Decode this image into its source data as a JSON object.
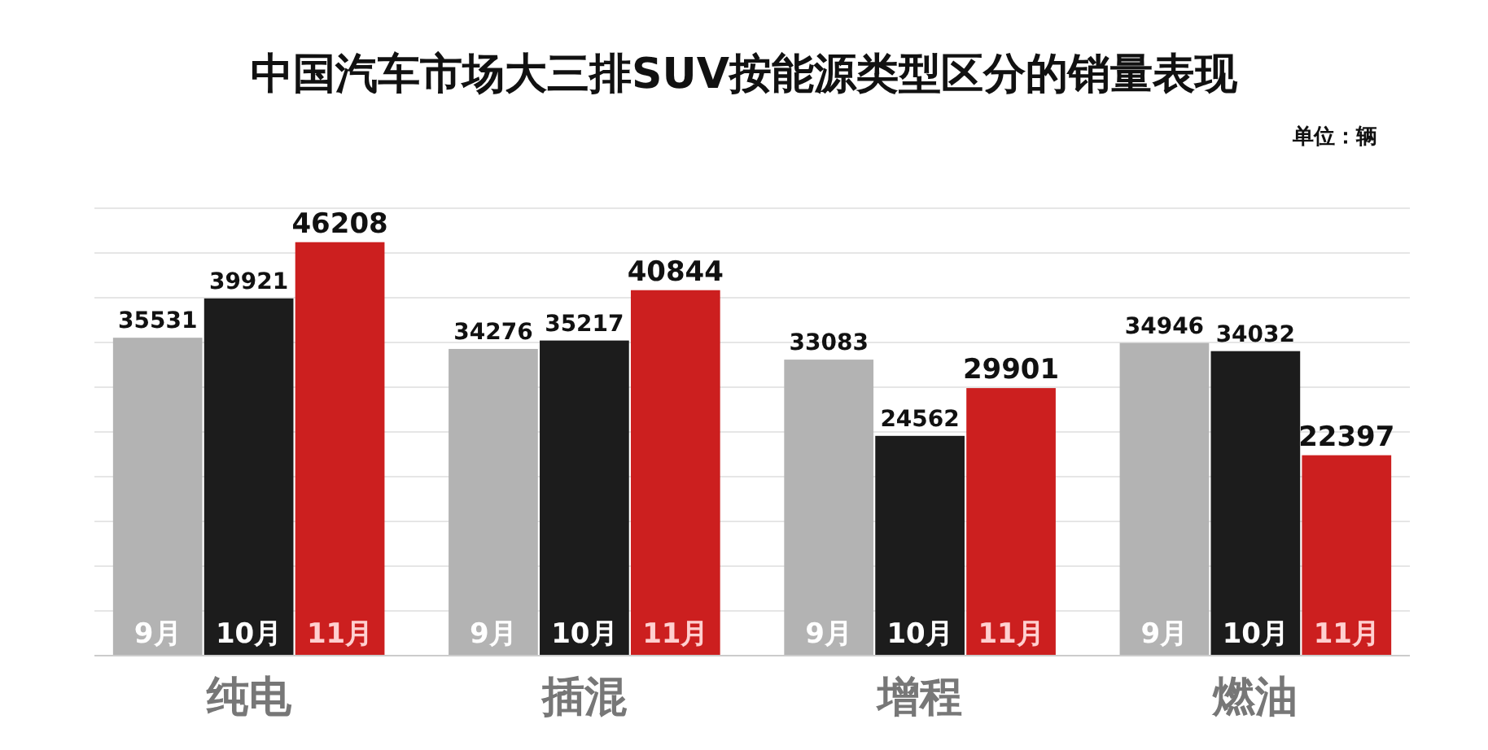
{
  "chart_data": {
    "type": "bar",
    "title": "中国汽车市场大三排SUV按能源类型区分的销量表现",
    "annotations": [
      "单位：辆"
    ],
    "categories": [
      "纯电",
      "插混",
      "增程",
      "燃油"
    ],
    "series": [
      {
        "name": "9月",
        "color": "#b3b3b3",
        "values": [
          35531,
          34276,
          33083,
          34946
        ]
      },
      {
        "name": "10月",
        "color": "#1c1c1c",
        "values": [
          39921,
          35217,
          24562,
          34032
        ]
      },
      {
        "name": "11月",
        "color": "#cc1f1f",
        "values": [
          46208,
          40844,
          29901,
          22397
        ]
      }
    ],
    "ylim": [
      0,
      50000
    ],
    "yticks": [
      {
        "value": 0,
        "label": null
      },
      {
        "value": 5000,
        "label": null
      },
      {
        "value": 10000,
        "label": null
      },
      {
        "value": 15000,
        "label": null
      },
      {
        "value": 20000,
        "label": null
      },
      {
        "value": 25000,
        "label": null
      },
      {
        "value": 30000,
        "label": null
      },
      {
        "value": 35000,
        "label": null
      },
      {
        "value": 40000,
        "label": null
      },
      {
        "value": 45000,
        "label": null
      },
      {
        "value": 50000,
        "label": null
      }
    ],
    "tick_labels": "x",
    "grid": "y",
    "legend": false,
    "data_labels": true
  }
}
